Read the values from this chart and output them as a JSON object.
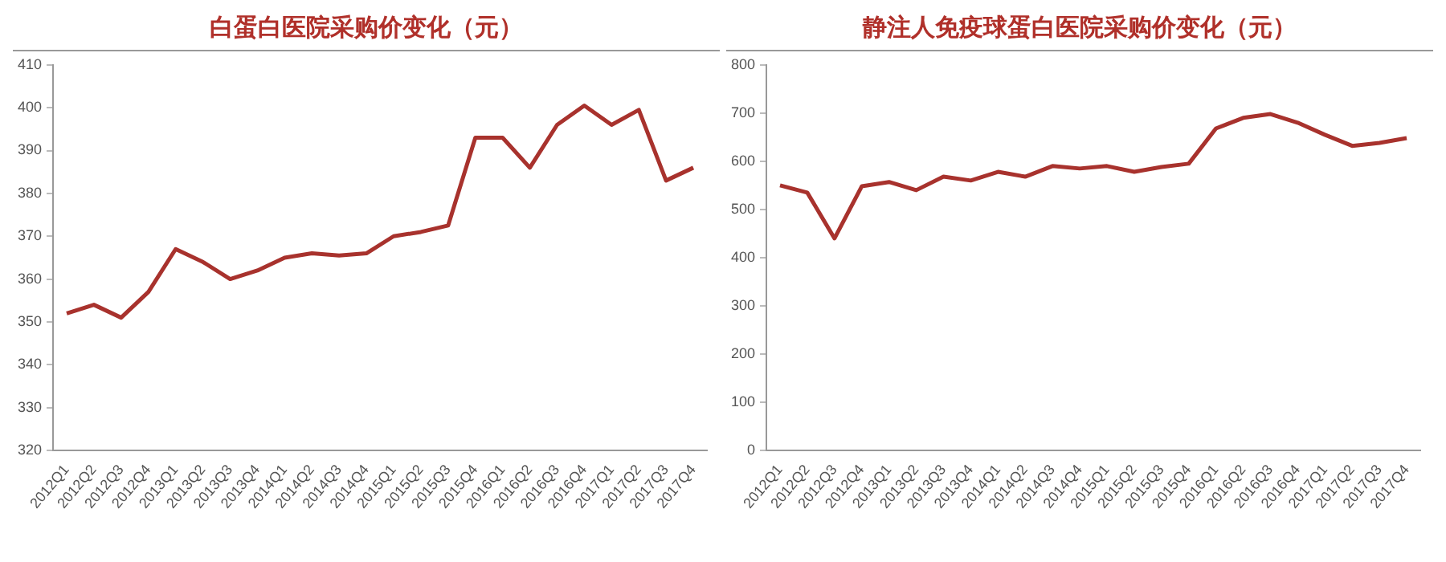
{
  "chart_data": [
    {
      "type": "line",
      "title": "白蛋白医院采购价变化（元）",
      "categories": [
        "2012Q1",
        "2012Q2",
        "2012Q3",
        "2012Q4",
        "2013Q1",
        "2013Q2",
        "2013Q3",
        "2013Q4",
        "2014Q1",
        "2014Q2",
        "2014Q3",
        "2014Q4",
        "2015Q1",
        "2015Q2",
        "2015Q3",
        "2015Q4",
        "2016Q1",
        "2016Q2",
        "2016Q3",
        "2016Q4",
        "2017Q1",
        "2017Q2",
        "2017Q3",
        "2017Q4"
      ],
      "series": [
        {
          "color": "#a8322d",
          "values": [
            352,
            354,
            351,
            357,
            367,
            364,
            360,
            362,
            365,
            366,
            365.5,
            366,
            370,
            371,
            372.5,
            393,
            393,
            386,
            396,
            400.5,
            396,
            399.5,
            383,
            386
          ]
        }
      ],
      "ylim": [
        320,
        410
      ],
      "yticks": [
        320,
        330,
        340,
        350,
        360,
        370,
        380,
        390,
        400,
        410
      ],
      "grid": false,
      "legend": false,
      "marker": "none",
      "line_style": "solid"
    },
    {
      "type": "line",
      "title": "静注人免疫球蛋白医院采购价变化（元）",
      "categories": [
        "2012Q1",
        "2012Q2",
        "2012Q3",
        "2012Q4",
        "2013Q1",
        "2013Q2",
        "2013Q3",
        "2013Q4",
        "2014Q1",
        "2014Q2",
        "2014Q3",
        "2014Q4",
        "2015Q1",
        "2015Q2",
        "2015Q3",
        "2015Q4",
        "2016Q1",
        "2016Q2",
        "2016Q3",
        "2016Q4",
        "2017Q1",
        "2017Q2",
        "2017Q3",
        "2017Q4"
      ],
      "series": [
        {
          "color": "#a8322d",
          "values": [
            550,
            535,
            440,
            548,
            557,
            540,
            568,
            560,
            578,
            568,
            590,
            585,
            590,
            578,
            588,
            595,
            668,
            690,
            698,
            680,
            655,
            632,
            638,
            648
          ]
        }
      ],
      "ylim": [
        0,
        800
      ],
      "yticks": [
        0,
        100,
        200,
        300,
        400,
        500,
        600,
        700,
        800
      ],
      "grid": false,
      "legend": false,
      "marker": "none",
      "line_style": "solid"
    }
  ]
}
